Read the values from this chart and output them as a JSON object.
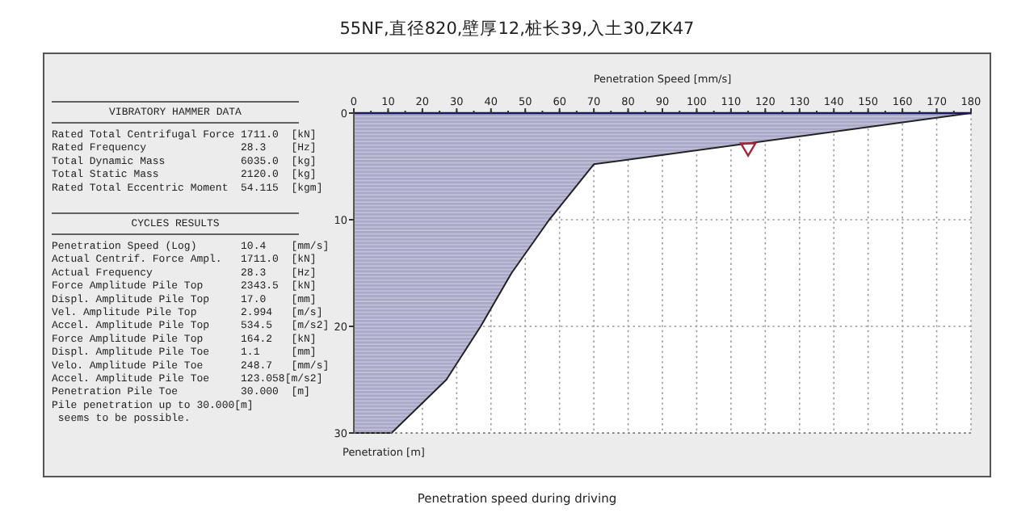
{
  "chart_data": {
    "type": "area",
    "title": "55NF,直径820,壁厚12,桩长39,入土30,ZK47",
    "xlabel": "Penetration Speed [mm/s]",
    "ylabel": "Penetration [m]",
    "xlim": [
      0,
      180
    ],
    "xticks": [
      0,
      10,
      20,
      30,
      40,
      50,
      60,
      70,
      80,
      90,
      100,
      110,
      120,
      130,
      140,
      150,
      160,
      170,
      180
    ],
    "ylim": [
      30,
      0
    ],
    "yticks": [
      0,
      10,
      20,
      30
    ],
    "grid": true,
    "series": [
      {
        "color": "#a9a8c8",
        "x": [
          0,
          180,
          70,
          57,
          46,
          37,
          27,
          11,
          0
        ],
        "values": [
          0,
          0,
          4.8,
          10,
          15,
          20,
          25,
          30,
          30
        ]
      },
      {
        "type": "scatter",
        "marker": "triangle",
        "color": "#a02838",
        "x": [
          115
        ],
        "values": [
          3.3
        ]
      }
    ],
    "annotations": [
      "VIBRATORY HAMMER DATA",
      "Rated Total Centrifugal Force 1711.0  [kN]",
      "Rated Frequency               28.3    [Hz]",
      "Total Dynamic Mass            6035.0  [kg]",
      "Total Static Mass             2120.0  [kg]",
      "Rated Total Eccentric Moment  54.115  [kgm]",
      "CYCLES RESULTS",
      "Penetration Speed (Log)       10.4    [mm/s]",
      "Actual Centrif. Force Ampl.   1711.0  [kN]",
      "Actual Frequency              28.3    [Hz]",
      "Force Amplitude Pile Top      2343.5  [kN]",
      "Displ. Amplitude Pile Top     17.0    [mm]",
      "Vel. Amplitude Pile Top       2.994   [m/s]",
      "Accel. Amplitude Pile Top     534.5   [m/s2]",
      "Force Amplitude Pile Top      164.2   [kN]",
      "Displ. Amplitude Pile Toe     1.1     [mm]",
      "Velo. Amplitude Pile Toe      248.7   [mm/s]",
      "Accel. Amplitude Pile Toe     123.058[m/s2]",
      "Penetration Pile Toe          30.000  [m]",
      "Pile penetration up to 30.000[m]",
      " seems to be possible.",
      "Penetration speed during driving"
    ]
  }
}
